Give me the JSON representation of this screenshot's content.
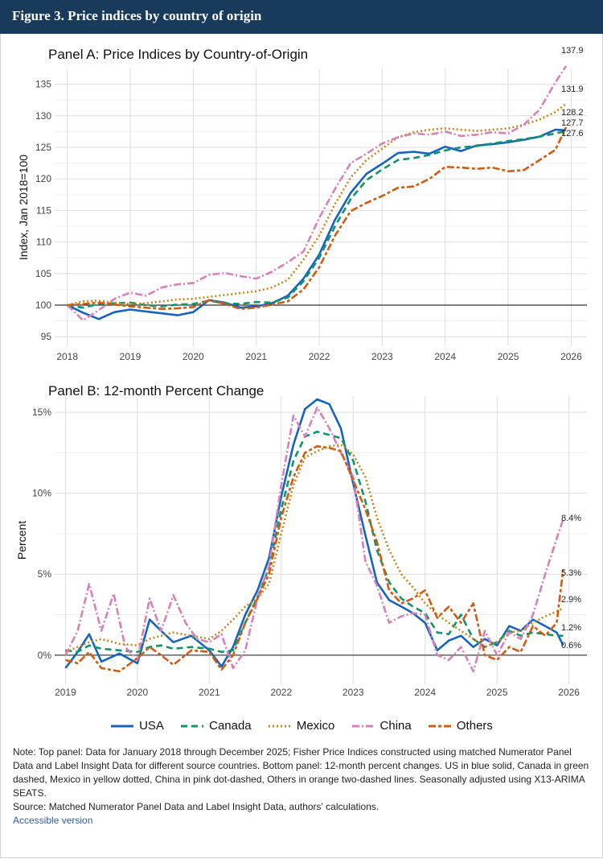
{
  "header": {
    "title": "Figure 3. Price indices by country of origin"
  },
  "legend": {
    "items": [
      {
        "label": "USA",
        "color": "#1565c0",
        "dash": ""
      },
      {
        "label": "Canada",
        "color": "#12946a",
        "dash": "8 5"
      },
      {
        "label": "Mexico",
        "color": "#c8861a",
        "dash": "2 3"
      },
      {
        "label": "China",
        "color": "#d980b8",
        "dash": "9 3 2 3"
      },
      {
        "label": "Others",
        "color": "#d35b10",
        "dash": "9 3 4 3"
      }
    ]
  },
  "footer": {
    "note": "Note: Top panel: Data for January 2018 through December 2025; Fisher Price Indices constructed using matched Numerator Panel Data and Label Insight Data for different source countries. Bottom panel: 12-month percent changes. US in blue solid, Canada in green dashed, Mexico in yellow dotted, China in pink dot-dashed, Others in orange two-dashed lines. Seasonally adjusted using X13-ARIMA SEATS.",
    "source": "Source: Matched Numerator Panel Data and Label Insight Data, authors' calculations.",
    "accessible_link": "Accessible version"
  },
  "chart_data": [
    {
      "type": "line",
      "title": "Panel A: Price Indices by Country-of-Origin",
      "xlabel": "",
      "ylabel": "Index, Jan 2018=100",
      "xlim": [
        2017.8,
        2026.25
      ],
      "ylim": [
        93.5,
        137.5
      ],
      "xticks": [
        2018,
        2019,
        2020,
        2021,
        2022,
        2023,
        2024,
        2025,
        2026
      ],
      "yticks": [
        95,
        100,
        105,
        110,
        115,
        120,
        125,
        130,
        135
      ],
      "ytick_labels": [
        "95",
        "100",
        "105",
        "110",
        "115",
        "120",
        "125",
        "130",
        "135"
      ],
      "reference_line": 100,
      "end_labels": [
        {
          "text": "137.9",
          "value": 137.9
        },
        {
          "text": "131.9",
          "value": 131.9
        },
        {
          "text": "128.2",
          "value": 128.2
        },
        {
          "text": "127.7",
          "value": 127.7
        },
        {
          "text": "127.6",
          "value": 127.6
        }
      ],
      "series": [
        {
          "name": "USA",
          "x": [
            2018.0,
            2018.25,
            2018.5,
            2018.75,
            2019.0,
            2019.25,
            2019.5,
            2019.75,
            2020.0,
            2020.25,
            2020.5,
            2020.75,
            2021.0,
            2021.25,
            2021.5,
            2021.75,
            2022.0,
            2022.25,
            2022.5,
            2022.75,
            2023.0,
            2023.25,
            2023.5,
            2023.75,
            2024.0,
            2024.25,
            2024.5,
            2024.75,
            2025.0,
            2025.25,
            2025.5,
            2025.75,
            2025.92
          ],
          "y": [
            100.0,
            98.8,
            97.8,
            98.9,
            99.3,
            99.0,
            98.7,
            98.4,
            98.9,
            100.8,
            100.4,
            99.6,
            99.8,
            100.3,
            101.5,
            104.2,
            108.0,
            113.5,
            117.8,
            120.8,
            122.4,
            124.1,
            124.3,
            124.0,
            125.1,
            124.4,
            125.3,
            125.5,
            125.8,
            126.2,
            126.7,
            127.8,
            127.7
          ]
        },
        {
          "name": "Canada",
          "x": [
            2018.0,
            2018.25,
            2018.5,
            2018.75,
            2019.0,
            2019.25,
            2019.5,
            2019.75,
            2020.0,
            2020.25,
            2020.5,
            2020.75,
            2021.0,
            2021.25,
            2021.5,
            2021.75,
            2022.0,
            2022.25,
            2022.5,
            2022.75,
            2023.0,
            2023.25,
            2023.5,
            2023.75,
            2024.0,
            2024.25,
            2024.5,
            2024.75,
            2025.0,
            2025.25,
            2025.5,
            2025.75,
            2025.92
          ],
          "y": [
            100.0,
            99.6,
            100.2,
            100.3,
            100.4,
            100.0,
            99.8,
            100.1,
            100.2,
            100.7,
            100.3,
            100.2,
            100.5,
            100.4,
            101.2,
            103.8,
            107.5,
            112.5,
            116.8,
            119.8,
            121.5,
            123.0,
            123.3,
            123.8,
            124.5,
            125.0,
            125.2,
            125.6,
            126.0,
            126.3,
            126.7,
            127.2,
            127.6
          ]
        },
        {
          "name": "Mexico",
          "x": [
            2018.0,
            2018.25,
            2018.5,
            2018.75,
            2019.0,
            2019.25,
            2019.5,
            2019.75,
            2020.0,
            2020.25,
            2020.5,
            2020.75,
            2021.0,
            2021.25,
            2021.5,
            2021.75,
            2022.0,
            2022.25,
            2022.5,
            2022.75,
            2023.0,
            2023.25,
            2023.5,
            2023.75,
            2024.0,
            2024.25,
            2024.5,
            2024.75,
            2025.0,
            2025.25,
            2025.5,
            2025.75,
            2025.92
          ],
          "y": [
            100.0,
            100.6,
            100.7,
            100.4,
            100.2,
            100.3,
            100.6,
            100.9,
            101.0,
            101.3,
            101.6,
            101.9,
            102.2,
            102.8,
            104.0,
            107.2,
            111.0,
            116.0,
            120.2,
            123.0,
            124.8,
            126.6,
            127.4,
            127.8,
            128.0,
            127.8,
            127.6,
            127.8,
            128.0,
            128.6,
            129.4,
            130.6,
            131.9
          ]
        },
        {
          "name": "China",
          "x": [
            2018.0,
            2018.25,
            2018.5,
            2018.75,
            2019.0,
            2019.25,
            2019.5,
            2019.75,
            2020.0,
            2020.25,
            2020.5,
            2020.75,
            2021.0,
            2021.25,
            2021.5,
            2021.75,
            2022.0,
            2022.25,
            2022.5,
            2022.75,
            2023.0,
            2023.25,
            2023.5,
            2023.75,
            2024.0,
            2024.25,
            2024.5,
            2024.75,
            2025.0,
            2025.25,
            2025.5,
            2025.75,
            2025.92
          ],
          "y": [
            100.0,
            97.6,
            99.2,
            101.0,
            102.0,
            101.5,
            102.8,
            103.3,
            103.5,
            104.8,
            105.1,
            104.6,
            104.2,
            105.3,
            106.8,
            108.5,
            113.8,
            118.4,
            122.5,
            124.0,
            125.6,
            126.6,
            127.2,
            127.0,
            127.5,
            126.8,
            127.0,
            127.4,
            127.2,
            128.6,
            131.0,
            135.3,
            137.9
          ]
        },
        {
          "name": "Others",
          "x": [
            2018.0,
            2018.25,
            2018.5,
            2018.75,
            2019.0,
            2019.25,
            2019.5,
            2019.75,
            2020.0,
            2020.25,
            2020.5,
            2020.75,
            2021.0,
            2021.25,
            2021.5,
            2021.75,
            2022.0,
            2022.25,
            2022.5,
            2022.75,
            2023.0,
            2023.25,
            2023.5,
            2023.75,
            2024.0,
            2024.25,
            2024.5,
            2024.75,
            2025.0,
            2025.25,
            2025.5,
            2025.75,
            2025.92
          ],
          "y": [
            100.0,
            100.2,
            100.4,
            100.1,
            99.8,
            99.6,
            99.4,
            99.5,
            99.7,
            100.8,
            100.2,
            99.4,
            99.6,
            100.1,
            100.6,
            102.5,
            106.0,
            111.0,
            114.9,
            116.2,
            117.3,
            118.6,
            118.8,
            120.0,
            121.9,
            121.8,
            121.6,
            121.8,
            121.2,
            121.4,
            123.0,
            124.6,
            128.2
          ]
        }
      ]
    },
    {
      "type": "line",
      "title": "Panel B: 12-month Percent Change",
      "xlabel": "",
      "ylabel": "Percent",
      "xlim": [
        2018.85,
        2026.25
      ],
      "ylim": [
        -1.8,
        16.0
      ],
      "xticks": [
        2019,
        2020,
        2021,
        2022,
        2023,
        2024,
        2025,
        2026
      ],
      "yticks": [
        0,
        5,
        10,
        15
      ],
      "ytick_labels": [
        "0%",
        "5%",
        "10%",
        "15%"
      ],
      "reference_line": 0,
      "end_labels": [
        {
          "text": "8.4%",
          "value": 8.4
        },
        {
          "text": "5.3%",
          "value": 5.3
        },
        {
          "text": "2.9%",
          "value": 2.9
        },
        {
          "text": "1.2%",
          "value": 1.2
        },
        {
          "text": "0.6%",
          "value": 0.6
        }
      ],
      "series": [
        {
          "name": "USA",
          "x": [
            2019.0,
            2019.17,
            2019.33,
            2019.5,
            2019.75,
            2020.0,
            2020.17,
            2020.33,
            2020.5,
            2020.75,
            2021.0,
            2021.17,
            2021.33,
            2021.5,
            2021.67,
            2021.83,
            2022.0,
            2022.17,
            2022.33,
            2022.5,
            2022.67,
            2022.83,
            2023.0,
            2023.17,
            2023.33,
            2023.5,
            2023.67,
            2023.83,
            2024.0,
            2024.17,
            2024.33,
            2024.5,
            2024.67,
            2024.83,
            2025.0,
            2025.17,
            2025.33,
            2025.5,
            2025.67,
            2025.83,
            2025.92
          ],
          "y": [
            -0.8,
            0.2,
            1.3,
            -0.4,
            0.1,
            -0.5,
            2.2,
            1.5,
            0.8,
            1.2,
            0.3,
            -0.7,
            0.5,
            2.5,
            4.0,
            6.0,
            9.8,
            13.0,
            15.2,
            15.8,
            15.5,
            14.0,
            10.6,
            7.4,
            4.5,
            3.4,
            3.0,
            2.6,
            2.0,
            0.3,
            0.9,
            1.2,
            0.5,
            1.0,
            0.6,
            1.8,
            1.5,
            2.2,
            1.8,
            1.4,
            0.6
          ]
        },
        {
          "name": "Canada",
          "x": [
            2019.0,
            2019.17,
            2019.33,
            2019.5,
            2019.75,
            2020.0,
            2020.17,
            2020.33,
            2020.5,
            2020.75,
            2021.0,
            2021.17,
            2021.33,
            2021.5,
            2021.67,
            2021.83,
            2022.0,
            2022.17,
            2022.33,
            2022.5,
            2022.67,
            2022.83,
            2023.0,
            2023.17,
            2023.33,
            2023.5,
            2023.67,
            2023.83,
            2024.0,
            2024.17,
            2024.33,
            2024.5,
            2024.67,
            2024.83,
            2025.0,
            2025.17,
            2025.33,
            2025.5,
            2025.67,
            2025.83,
            2025.92
          ],
          "y": [
            0.3,
            0.2,
            0.6,
            0.4,
            0.3,
            0.2,
            0.5,
            0.6,
            0.4,
            0.5,
            0.4,
            0.2,
            0.3,
            2.0,
            3.6,
            5.4,
            9.0,
            12.0,
            13.5,
            13.8,
            13.6,
            13.4,
            12.0,
            9.5,
            6.5,
            4.5,
            3.5,
            3.0,
            2.6,
            1.4,
            1.3,
            2.5,
            1.0,
            0.5,
            0.8,
            1.5,
            1.2,
            1.4,
            1.3,
            1.2,
            1.2
          ]
        },
        {
          "name": "Mexico",
          "x": [
            2019.0,
            2019.17,
            2019.33,
            2019.5,
            2019.75,
            2020.0,
            2020.17,
            2020.33,
            2020.5,
            2020.75,
            2021.0,
            2021.17,
            2021.33,
            2021.5,
            2021.67,
            2021.83,
            2022.0,
            2022.17,
            2022.33,
            2022.5,
            2022.67,
            2022.83,
            2023.0,
            2023.17,
            2023.33,
            2023.5,
            2023.67,
            2023.83,
            2024.0,
            2024.17,
            2024.33,
            2024.5,
            2024.67,
            2024.83,
            2025.0,
            2025.17,
            2025.33,
            2025.5,
            2025.67,
            2025.83,
            2025.92
          ],
          "y": [
            0.2,
            0.5,
            0.8,
            1.0,
            0.7,
            0.6,
            1.0,
            1.2,
            1.4,
            1.2,
            1.0,
            1.5,
            2.2,
            3.0,
            3.5,
            4.4,
            7.5,
            10.5,
            12.2,
            12.6,
            12.9,
            13.0,
            12.4,
            11.0,
            8.5,
            6.5,
            5.0,
            4.2,
            3.2,
            2.5,
            2.0,
            1.5,
            1.0,
            0.5,
            0.8,
            1.4,
            1.5,
            2.0,
            2.4,
            2.7,
            2.9
          ]
        },
        {
          "name": "China",
          "x": [
            2019.0,
            2019.17,
            2019.33,
            2019.5,
            2019.67,
            2019.83,
            2020.0,
            2020.17,
            2020.33,
            2020.5,
            2020.67,
            2020.83,
            2021.0,
            2021.17,
            2021.33,
            2021.5,
            2021.67,
            2021.83,
            2022.0,
            2022.17,
            2022.33,
            2022.5,
            2022.67,
            2022.83,
            2023.0,
            2023.17,
            2023.33,
            2023.5,
            2023.67,
            2023.83,
            2024.0,
            2024.17,
            2024.33,
            2024.5,
            2024.67,
            2024.83,
            2025.0,
            2025.17,
            2025.33,
            2025.5,
            2025.67,
            2025.83,
            2025.92
          ],
          "y": [
            0.0,
            1.5,
            4.4,
            1.5,
            3.8,
            0.5,
            -0.3,
            3.5,
            1.5,
            3.7,
            2.0,
            1.0,
            0.8,
            1.3,
            -0.8,
            0.3,
            3.5,
            5.5,
            10.5,
            14.8,
            13.5,
            15.3,
            14.0,
            12.5,
            11.0,
            5.8,
            4.3,
            2.0,
            2.4,
            2.6,
            2.5,
            0.0,
            -0.3,
            0.5,
            -1.0,
            1.5,
            0.0,
            1.4,
            1.0,
            2.5,
            5.0,
            7.2,
            8.4
          ]
        },
        {
          "name": "Others",
          "x": [
            2019.0,
            2019.17,
            2019.33,
            2019.5,
            2019.75,
            2020.0,
            2020.17,
            2020.33,
            2020.5,
            2020.75,
            2021.0,
            2021.17,
            2021.33,
            2021.5,
            2021.67,
            2021.83,
            2022.0,
            2022.17,
            2022.33,
            2022.5,
            2022.67,
            2022.83,
            2023.0,
            2023.17,
            2023.33,
            2023.5,
            2023.67,
            2023.83,
            2024.0,
            2024.17,
            2024.33,
            2024.5,
            2024.67,
            2024.83,
            2025.0,
            2025.17,
            2025.33,
            2025.5,
            2025.67,
            2025.83,
            2025.92
          ],
          "y": [
            -0.3,
            -0.5,
            0.2,
            -0.8,
            -1.0,
            -0.2,
            0.5,
            0.0,
            -0.6,
            0.3,
            0.2,
            -0.9,
            0.0,
            2.0,
            3.5,
            5.0,
            8.5,
            11.0,
            12.5,
            12.9,
            12.8,
            12.6,
            10.8,
            9.0,
            7.0,
            4.0,
            3.2,
            3.5,
            4.0,
            2.3,
            3.0,
            2.0,
            3.2,
            0.0,
            -0.3,
            0.5,
            0.2,
            1.8,
            1.2,
            2.0,
            5.3
          ]
        }
      ]
    }
  ]
}
